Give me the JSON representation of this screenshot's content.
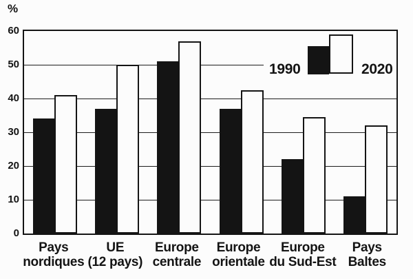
{
  "chart_data": {
    "type": "bar",
    "title": "",
    "xlabel": "",
    "ylabel": "%",
    "categories": [
      "Pays nordiques",
      "UE (12 pays)",
      "Europe centrale",
      "Europe orientale",
      "Europe du Sud-Est",
      "Pays Baltes"
    ],
    "category_lines": [
      [
        "Pays",
        "nordiques"
      ],
      [
        "UE",
        "(12 pays)"
      ],
      [
        "Europe",
        "centrale"
      ],
      [
        "Europe",
        "orientale"
      ],
      [
        "Europe",
        "du Sud-Est"
      ],
      [
        "Pays",
        "Baltes"
      ]
    ],
    "series": [
      {
        "name": "1990",
        "fill": "#141414",
        "values": [
          34,
          37,
          51,
          37,
          22,
          11
        ]
      },
      {
        "name": "2020",
        "fill": "#fcfcfc",
        "values": [
          41,
          50,
          57,
          42.5,
          34.5,
          32
        ]
      }
    ],
    "ylim": [
      0,
      60
    ],
    "yticks": [
      60,
      50,
      40,
      30,
      20,
      10,
      0
    ],
    "grid": true,
    "legend_position": "top-right-inside",
    "colors": {
      "ink": "#141414",
      "paper": "#fcfcfc"
    }
  }
}
